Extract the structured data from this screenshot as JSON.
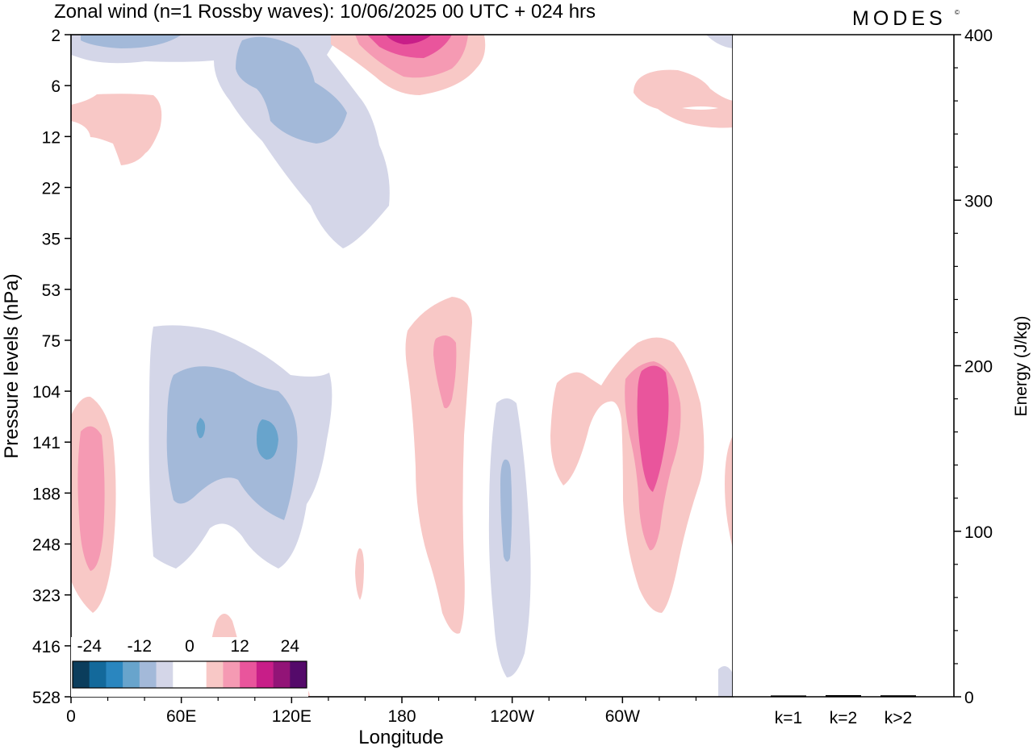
{
  "chart_data": [
    {
      "type": "heatmap",
      "title": "Zonal wind (n=1 Rossby waves):  10/06/2025  00 UTC  + 024 hrs",
      "xlabel": "Longitude",
      "ylabel": "Pressure levels (hPa)",
      "x_ticks": [
        "0",
        "60E",
        "120E",
        "180",
        "120W",
        "60W"
      ],
      "x_tick_degrees": [
        0,
        60,
        120,
        180,
        240,
        300
      ],
      "xlim": [
        0,
        360
      ],
      "y_ticks": [
        "2",
        "6",
        "12",
        "22",
        "35",
        "53",
        "75",
        "104",
        "141",
        "188",
        "248",
        "323",
        "416",
        "528"
      ],
      "colorbar": {
        "labels": [
          "-24",
          "-12",
          "0",
          "12",
          "24"
        ],
        "colors": [
          "#0b3d5c",
          "#13699b",
          "#2a86bf",
          "#68a4cc",
          "#a3b9d9",
          "#d4d6e8",
          "#ffffff",
          "#ffffff",
          "#f8c8c6",
          "#f59ab3",
          "#e9559c",
          "#c81e88",
          "#921477",
          "#540a6a"
        ]
      },
      "features": [
        {
          "sign": "positive",
          "lon": 12,
          "level": "188",
          "peak_level": 2
        },
        {
          "sign": "positive",
          "lon": 83,
          "level": "528",
          "peak_level": 1
        },
        {
          "sign": "positive",
          "lon": 174,
          "level": "2",
          "peak_level": 4
        },
        {
          "sign": "positive",
          "lon": 194,
          "level": "141",
          "peak_level": 2
        },
        {
          "sign": "positive",
          "lon": 313,
          "level": "141",
          "peak_level": 3
        },
        {
          "sign": "positive",
          "lon": 27,
          "level": "12",
          "peak_level": 1
        },
        {
          "sign": "positive",
          "lon": 336,
          "level": "6",
          "peak_level": 1
        },
        {
          "sign": "negative",
          "lon": 102,
          "level": "141",
          "peak_level": 3
        },
        {
          "sign": "negative",
          "lon": 118,
          "level": "12",
          "peak_level": 2
        },
        {
          "sign": "negative",
          "lon": 237,
          "level": "188",
          "peak_level": 2
        }
      ]
    },
    {
      "type": "bar",
      "ylabel": "Energy (J/kg)",
      "categories": [
        "k=1",
        "k=2",
        "k>2"
      ],
      "values": [
        0.3,
        0.5,
        0.4
      ],
      "ylim": [
        0,
        400
      ],
      "y_ticks": [
        "0",
        "100",
        "200",
        "300",
        "400"
      ]
    }
  ],
  "brand": {
    "logo_text": "MODES",
    "mark": "©"
  },
  "colors": {
    "pos1": "#f8c8c6",
    "pos2": "#f59ab3",
    "pos3": "#e9559c",
    "pos4": "#c81e88",
    "neg1": "#d4d6e8",
    "neg2": "#a3b9d9",
    "neg3": "#68a4cc"
  }
}
